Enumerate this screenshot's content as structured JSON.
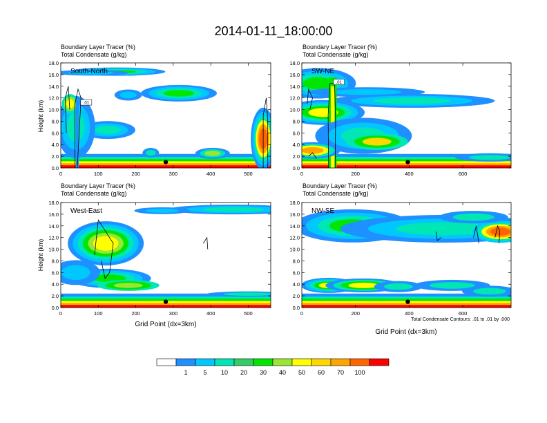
{
  "title": "2014-01-11_18:00:00",
  "chart_data": [
    {
      "type": "heatmap",
      "label": "South-North",
      "title_line1": "Boundary Layer Tracer   (%)",
      "title_line2": "Total Condensate   (g/kg)",
      "ylabel": "Height (km)",
      "xlabel": "",
      "xlim": [
        0,
        560
      ],
      "ylim": [
        0,
        18
      ],
      "xticks": [
        "0",
        "100",
        "200",
        "300",
        "400",
        "500"
      ],
      "xtick_values": [
        0,
        100,
        200,
        300,
        400,
        500
      ],
      "yticks": [
        "0.0",
        "2.0",
        "4.0",
        "6.0",
        "8.0",
        "10.0",
        "12.0",
        "14.0",
        "16.0",
        "18.0"
      ],
      "contour_label": ".01",
      "marker": {
        "x": 280,
        "y": 1.0
      }
    },
    {
      "type": "heatmap",
      "label": "SW-NE",
      "title_line1": "Boundary Layer Tracer   (%)",
      "title_line2": "Total Condensate   (g/kg)",
      "ylabel": "",
      "xlabel": "",
      "xlim": [
        0,
        780
      ],
      "ylim": [
        0,
        18
      ],
      "xticks": [
        "0",
        "200",
        "400",
        "600"
      ],
      "xtick_values": [
        0,
        200,
        400,
        600
      ],
      "yticks": [
        "0.0",
        "2.0",
        "4.0",
        "6.0",
        "8.0",
        "10.0",
        "12.0",
        "14.0",
        "16.0",
        "18.0"
      ],
      "contour_label": ".01",
      "marker": {
        "x": 395,
        "y": 1.0
      }
    },
    {
      "type": "heatmap",
      "label": "West-East",
      "title_line1": "Boundary Layer Tracer   (%)",
      "title_line2": "Total Condensate   (g/kg)",
      "ylabel": "Height (km)",
      "xlabel": "Grid Point (dx=3km)",
      "xlim": [
        0,
        560
      ],
      "ylim": [
        0,
        18
      ],
      "xticks": [
        "0",
        "100",
        "200",
        "300",
        "400",
        "500"
      ],
      "xtick_values": [
        0,
        100,
        200,
        300,
        400,
        500
      ],
      "yticks": [
        "0.0",
        "2.0",
        "4.0",
        "6.0",
        "8.0",
        "10.0",
        "12.0",
        "14.0",
        "16.0",
        "18.0"
      ],
      "contour_label": "",
      "marker": {
        "x": 280,
        "y": 1.0
      }
    },
    {
      "type": "heatmap",
      "label": "NW-SE",
      "title_line1": "Boundary Layer Tracer   (%)",
      "title_line2": "Total Condensate   (g/kg)",
      "ylabel": "",
      "xlabel": "Grid Point (dx=3km)",
      "xlim": [
        0,
        780
      ],
      "ylim": [
        0,
        18
      ],
      "xticks": [
        "0",
        "200",
        "400",
        "600"
      ],
      "xtick_values": [
        0,
        200,
        400,
        600
      ],
      "yticks": [
        "0.0",
        "2.0",
        "4.0",
        "6.0",
        "8.0",
        "10.0",
        "12.0",
        "14.0",
        "16.0",
        "18.0"
      ],
      "contour_label": "",
      "marker": {
        "x": 395,
        "y": 1.0
      }
    }
  ],
  "contour_note": "Total Condensate Contours: .01 to .01 by .000",
  "colorbar": {
    "colors": [
      "#ffffff",
      "#1e90ff",
      "#00c8ff",
      "#00e6b4",
      "#33cc66",
      "#00e600",
      "#99e633",
      "#ffff00",
      "#ffd700",
      "#ffa500",
      "#ff6400",
      "#ff0000"
    ],
    "labels": [
      "1",
      "5",
      "10",
      "20",
      "30",
      "40",
      "50",
      "60",
      "70",
      "100"
    ]
  }
}
